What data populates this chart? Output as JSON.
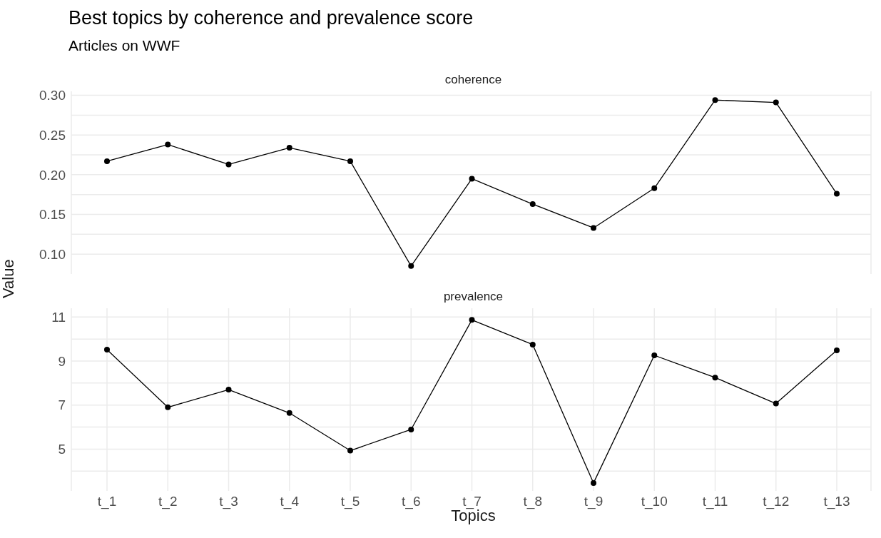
{
  "chart_data": [
    {
      "type": "line",
      "title": "Best topics by coherence and prevalence score",
      "subtitle": "Articles on WWF",
      "ylabel": "Value",
      "categories": [
        null,
        null,
        null,
        null,
        null,
        null,
        null,
        null,
        null,
        null,
        null,
        null,
        null
      ],
      "series": [
        {
          "name": "coherence",
          "color": "#000000",
          "values": [
            0.217,
            0.238,
            0.213,
            0.234,
            0.217,
            0.085,
            0.195,
            0.163,
            0.133,
            0.183,
            0.294,
            0.291,
            0.176
          ]
        }
      ],
      "ylim": [
        0.075,
        0.305
      ],
      "yticks": [
        {
          "value": 0.1,
          "label": "0.10"
        },
        {
          "value": 0.125,
          "label": null
        },
        {
          "value": 0.15,
          "label": "0.15"
        },
        {
          "value": 0.175,
          "label": null
        },
        {
          "value": 0.2,
          "label": "0.20"
        },
        {
          "value": 0.225,
          "label": null
        },
        {
          "value": 0.25,
          "label": "0.25"
        },
        {
          "value": 0.275,
          "label": null
        },
        {
          "value": 0.3,
          "label": "0.30"
        }
      ],
      "grid": true,
      "legend": false,
      "marker": "circle",
      "line_style": "solid",
      "tick_labels": "y"
    },
    {
      "type": "line",
      "xlabel": "Topics",
      "categories": [
        "t_1",
        "t_2",
        "t_3",
        "t_4",
        "t_5",
        "t_6",
        "t_7",
        "t_8",
        "t_9",
        "t_10",
        "t_11",
        "t_12",
        "t_13"
      ],
      "series": [
        {
          "name": "prevalence",
          "color": "#000000",
          "values": [
            9.52,
            6.9,
            7.7,
            6.64,
            4.93,
            5.89,
            10.87,
            9.75,
            3.46,
            9.26,
            8.25,
            7.07,
            9.49
          ]
        }
      ],
      "ylim": [
        3.1,
        11.4
      ],
      "yticks": [
        {
          "value": 4,
          "label": null
        },
        {
          "value": 5,
          "label": "5"
        },
        {
          "value": 6,
          "label": null
        },
        {
          "value": 7,
          "label": "7"
        },
        {
          "value": 8,
          "label": null
        },
        {
          "value": 9,
          "label": "9"
        },
        {
          "value": 10,
          "label": null
        },
        {
          "value": 11,
          "label": "11"
        }
      ],
      "grid": true,
      "legend": false,
      "marker": "circle",
      "line_style": "solid"
    }
  ]
}
